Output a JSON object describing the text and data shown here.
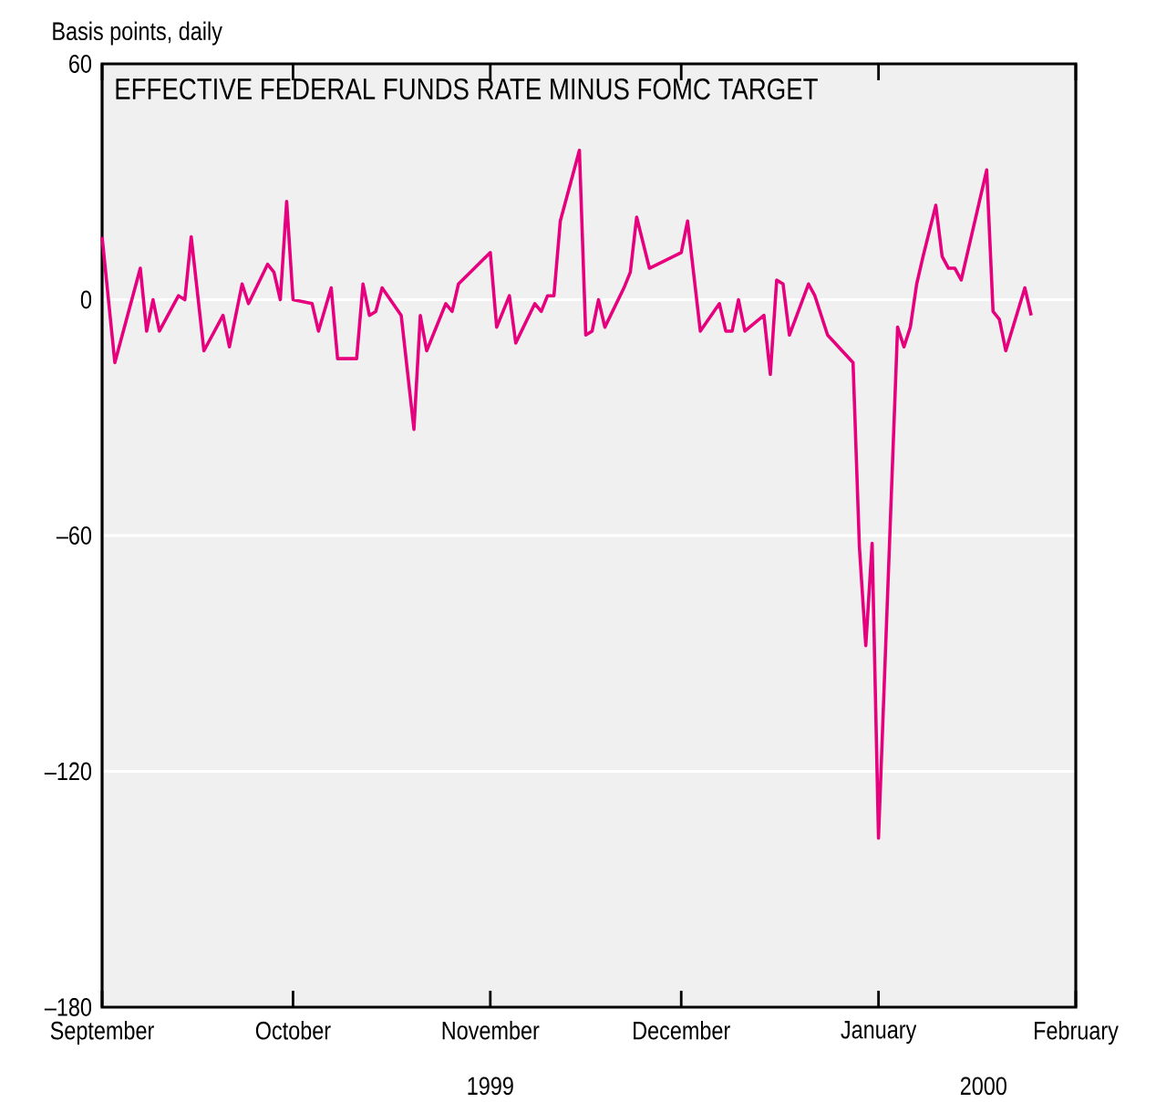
{
  "chart_data": {
    "type": "line",
    "title": "EFFECTIVE FEDERAL FUNDS RATE MINUS FOMC TARGET",
    "ylabel": "Basis points, daily",
    "annotations": [
      "1999",
      "2000"
    ],
    "xlim": [
      "1999-09-01",
      "2000-02-01"
    ],
    "xticks": [
      {
        "value": "1999-09-01",
        "label": "September"
      },
      {
        "value": "1999-10-01",
        "label": "October"
      },
      {
        "value": "1999-11-01",
        "label": "November"
      },
      {
        "value": "1999-12-01",
        "label": "December"
      },
      {
        "value": "2000-01-01",
        "label": "January"
      },
      {
        "value": "2000-02-01",
        "label": "February"
      }
    ],
    "ylim": [
      -180,
      60
    ],
    "yticks": [
      {
        "value": 60,
        "label": "60"
      },
      {
        "value": 0,
        "label": "0"
      },
      {
        "value": -60,
        "label": "–60"
      },
      {
        "value": -120,
        "label": "–120"
      },
      {
        "value": -180,
        "label": "–180"
      }
    ],
    "grid": "y",
    "marker": "none",
    "line_style": "solid",
    "x": [
      "1999-09-01",
      "1999-09-03",
      "1999-09-07",
      "1999-09-08",
      "1999-09-09",
      "1999-09-10",
      "1999-09-13",
      "1999-09-14",
      "1999-09-15",
      "1999-09-17",
      "1999-09-20",
      "1999-09-21",
      "1999-09-23",
      "1999-09-24",
      "1999-09-27",
      "1999-09-28",
      "1999-09-29",
      "1999-09-30",
      "1999-10-01",
      "1999-10-04",
      "1999-10-05",
      "1999-10-07",
      "1999-10-08",
      "1999-10-11",
      "1999-10-12",
      "1999-10-13",
      "1999-10-14",
      "1999-10-15",
      "1999-10-18",
      "1999-10-20",
      "1999-10-21",
      "1999-10-22",
      "1999-10-25",
      "1999-10-26",
      "1999-10-27",
      "1999-11-01",
      "1999-11-02",
      "1999-11-04",
      "1999-11-05",
      "1999-11-08",
      "1999-11-09",
      "1999-11-10",
      "1999-11-11",
      "1999-11-12",
      "1999-11-15",
      "1999-11-16",
      "1999-11-17",
      "1999-11-18",
      "1999-11-19",
      "1999-11-22",
      "1999-11-23",
      "1999-11-24",
      "1999-11-26",
      "1999-12-01",
      "1999-12-02",
      "1999-12-04",
      "1999-12-07",
      "1999-12-08",
      "1999-12-09",
      "1999-12-10",
      "1999-12-11",
      "1999-12-14",
      "1999-12-15",
      "1999-12-16",
      "1999-12-17",
      "1999-12-18",
      "1999-12-21",
      "1999-12-22",
      "1999-12-24",
      "1999-12-28",
      "1999-12-29",
      "1999-12-30",
      "1999-12-31",
      "2000-01-01",
      "2000-01-04",
      "2000-01-05",
      "2000-01-06",
      "2000-01-07",
      "2000-01-08",
      "2000-01-10",
      "2000-01-11",
      "2000-01-12",
      "2000-01-13",
      "2000-01-14",
      "2000-01-18",
      "2000-01-19",
      "2000-01-20",
      "2000-01-21",
      "2000-01-24",
      "2000-01-25"
    ],
    "series": [
      {
        "color": "#e6007e",
        "values": [
          16,
          -16,
          8,
          -8,
          0,
          -8,
          1,
          0,
          16,
          -13,
          -4,
          -12,
          4,
          -1,
          9,
          7,
          0,
          25,
          0,
          -1,
          -8,
          3,
          -15,
          -15,
          4,
          -4,
          -3,
          3,
          -4,
          -33,
          -4,
          -13,
          -1,
          -3,
          4,
          12,
          -7,
          1,
          -11,
          -1,
          -3,
          1,
          1,
          20,
          38,
          -9,
          -8,
          0,
          -7,
          3,
          7,
          21,
          8,
          12,
          20,
          -8,
          -1,
          -8,
          -8,
          0,
          -8,
          -4,
          -19,
          5,
          4,
          -9,
          4,
          1,
          -9,
          -16,
          -63,
          -88,
          -62,
          -137,
          -7,
          -12,
          -7,
          4,
          11,
          24,
          11,
          8,
          8,
          5,
          33,
          -3,
          -5,
          -13,
          3,
          -4
        ]
      }
    ]
  }
}
